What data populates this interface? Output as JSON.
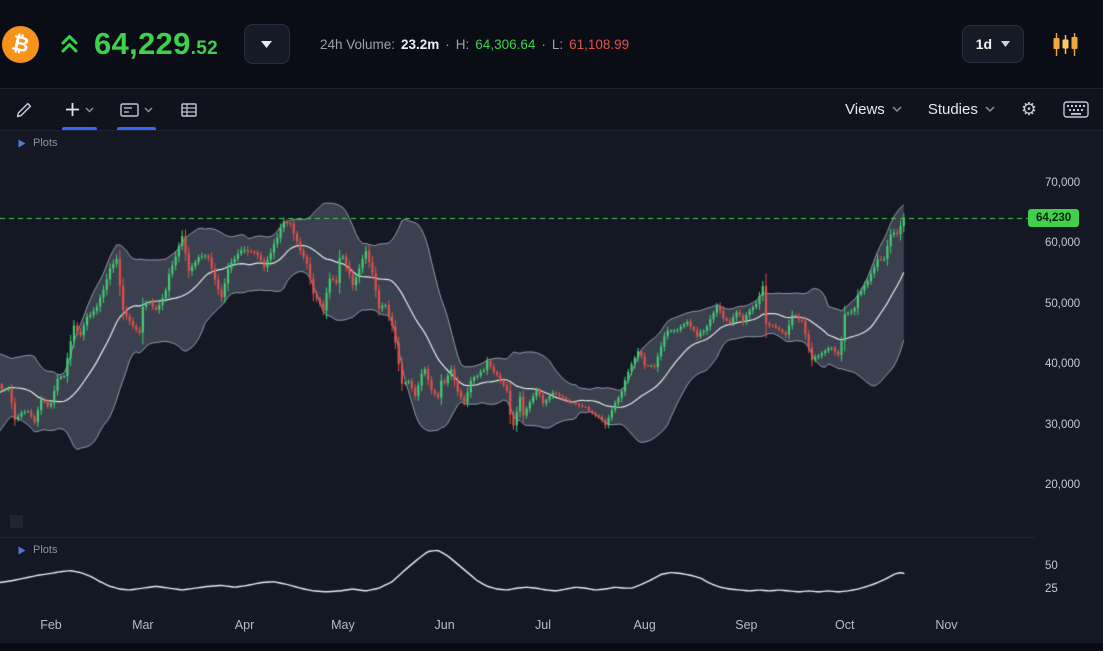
{
  "colors": {
    "green": "#3fd14b",
    "red": "#e2524c",
    "candle_up": "#41cd72",
    "candle_down": "#e0514b",
    "tag_text": "#0a2206",
    "btc_orange": "#f7931a",
    "icon_orange": "#f2a93b",
    "band_fill": "rgba(148,158,178,0.30)"
  },
  "header": {
    "logo_glyph": "₿",
    "price_int": "64,229",
    "price_dec": ".52",
    "volume_label": "24h Volume:",
    "volume_value": "23.2m",
    "sep": "·",
    "high_label": "H:",
    "high_value": "64,306.64",
    "low_label": "L:",
    "low_value": "61,108.99",
    "timeframe": "1d"
  },
  "toolbar": {
    "views_label": "Views",
    "studies_label": "Studies"
  },
  "chart": {
    "plots_label": "Plots",
    "price_tag": "64,230",
    "y_ticks": [
      "70,000",
      "60,000",
      "50,000",
      "40,000",
      "30,000",
      "20,000"
    ],
    "sub_ticks": [
      "50",
      "25"
    ],
    "x_ticks": [
      "Feb",
      "Mar",
      "Apr",
      "May",
      "Jun",
      "Jul",
      "Aug",
      "Sep",
      "Oct",
      "Nov"
    ]
  },
  "chart_data": {
    "type": "candlestick",
    "timeframe": "1d",
    "unit": "USD",
    "current_price": 64229.52,
    "session_high": 64306.64,
    "session_low": 61108.99,
    "price_line": 64230,
    "y_axis": {
      "ticks": [
        70000,
        60000,
        50000,
        40000,
        30000,
        20000
      ]
    },
    "x_axis": {
      "labels": [
        "Feb",
        "Mar",
        "Apr",
        "May",
        "Jun",
        "Jul",
        "Aug",
        "Sep",
        "Oct",
        "Nov"
      ],
      "month_start_days": [
        0,
        28,
        59,
        89,
        120,
        150,
        181,
        212,
        242,
        273
      ]
    },
    "band_overlay": {
      "period": 20,
      "k": 2
    },
    "daily_close_anchors": [
      [
        -36,
        29400
      ],
      [
        -30,
        32200
      ],
      [
        -26,
        36800
      ],
      [
        -24,
        40800
      ],
      [
        -22,
        38200
      ],
      [
        -20,
        34000
      ],
      [
        -18,
        39300
      ],
      [
        -16,
        36800
      ],
      [
        -15,
        35800
      ],
      [
        -13,
        36000
      ],
      [
        -11,
        30800
      ],
      [
        -9,
        32100
      ],
      [
        -7,
        32300
      ],
      [
        -5,
        30400
      ],
      [
        -3,
        34300
      ],
      [
        -1,
        33100
      ],
      [
        0,
        33500
      ],
      [
        2,
        37600
      ],
      [
        4,
        38100
      ],
      [
        7,
        46400
      ],
      [
        9,
        44800
      ],
      [
        11,
        47900
      ],
      [
        13,
        48600
      ],
      [
        16,
        52200
      ],
      [
        18,
        55900
      ],
      [
        20,
        57500
      ],
      [
        22,
        48900
      ],
      [
        24,
        47100
      ],
      [
        25,
        46300
      ],
      [
        27,
        45200
      ],
      [
        28,
        49600
      ],
      [
        30,
        50300
      ],
      [
        32,
        48800
      ],
      [
        35,
        52200
      ],
      [
        36,
        54900
      ],
      [
        40,
        61200
      ],
      [
        42,
        55600
      ],
      [
        46,
        58100
      ],
      [
        48,
        57500
      ],
      [
        51,
        52300
      ],
      [
        52,
        51300
      ],
      [
        54,
        55800
      ],
      [
        56,
        57600
      ],
      [
        58,
        58900
      ],
      [
        59,
        59000
      ],
      [
        63,
        58200
      ],
      [
        65,
        56000
      ],
      [
        68,
        59800
      ],
      [
        71,
        63500
      ],
      [
        73,
        63200
      ],
      [
        75,
        60100
      ],
      [
        78,
        56500
      ],
      [
        80,
        51700
      ],
      [
        83,
        49100
      ],
      [
        85,
        54000
      ],
      [
        87,
        53600
      ],
      [
        88,
        57700
      ],
      [
        89,
        57800
      ],
      [
        92,
        53200
      ],
      [
        95,
        57400
      ],
      [
        96,
        58900
      ],
      [
        98,
        55000
      ],
      [
        100,
        49400
      ],
      [
        102,
        49700
      ],
      [
        104,
        46400
      ],
      [
        105,
        43500
      ],
      [
        107,
        36700
      ],
      [
        109,
        37300
      ],
      [
        111,
        34700
      ],
      [
        113,
        38300
      ],
      [
        114,
        39300
      ],
      [
        116,
        35700
      ],
      [
        118,
        34600
      ],
      [
        119,
        37300
      ],
      [
        120,
        36700
      ],
      [
        122,
        39200
      ],
      [
        124,
        35500
      ],
      [
        126,
        33600
      ],
      [
        128,
        37400
      ],
      [
        132,
        39000
      ],
      [
        133,
        40500
      ],
      [
        136,
        38100
      ],
      [
        139,
        35600
      ],
      [
        140,
        31700
      ],
      [
        141,
        29800
      ],
      [
        143,
        34700
      ],
      [
        144,
        31600
      ],
      [
        147,
        34700
      ],
      [
        148,
        35900
      ],
      [
        149,
        35000
      ],
      [
        150,
        33500
      ],
      [
        153,
        35300
      ],
      [
        158,
        33800
      ],
      [
        163,
        32800
      ],
      [
        165,
        31900
      ],
      [
        168,
        30800
      ],
      [
        169,
        29800
      ],
      [
        172,
        33600
      ],
      [
        174,
        35400
      ],
      [
        175,
        37200
      ],
      [
        177,
        40000
      ],
      [
        179,
        42200
      ],
      [
        180,
        41500
      ],
      [
        181,
        39900
      ],
      [
        184,
        39700
      ],
      [
        187,
        44600
      ],
      [
        188,
        45600
      ],
      [
        191,
        45600
      ],
      [
        194,
        47000
      ],
      [
        197,
        44700
      ],
      [
        200,
        46300
      ],
      [
        203,
        49500
      ],
      [
        205,
        47700
      ],
      [
        207,
        46800
      ],
      [
        209,
        48800
      ],
      [
        211,
        47100
      ],
      [
        213,
        49000
      ],
      [
        215,
        50000
      ],
      [
        217,
        52700
      ],
      [
        218,
        46800
      ],
      [
        221,
        46100
      ],
      [
        224,
        44900
      ],
      [
        226,
        48100
      ],
      [
        229,
        47100
      ],
      [
        232,
        40700
      ],
      [
        236,
        42200
      ],
      [
        238,
        42700
      ],
      [
        240,
        41500
      ],
      [
        241,
        43800
      ],
      [
        242,
        48200
      ],
      [
        245,
        49200
      ],
      [
        246,
        51500
      ],
      [
        249,
        53900
      ],
      [
        252,
        57500
      ],
      [
        254,
        57400
      ],
      [
        256,
        61700
      ],
      [
        258,
        61500
      ],
      [
        260,
        64230
      ]
    ],
    "indicator_panel": {
      "type": "line",
      "y_ticks": [
        50,
        25
      ],
      "anchors": [
        [
          -16,
          33
        ],
        [
          -12,
          35
        ],
        [
          -8,
          38
        ],
        [
          -4,
          41
        ],
        [
          0,
          43
        ],
        [
          3,
          45
        ],
        [
          6,
          46
        ],
        [
          9,
          44
        ],
        [
          12,
          40
        ],
        [
          15,
          34
        ],
        [
          18,
          29
        ],
        [
          21,
          26
        ],
        [
          24,
          25
        ],
        [
          28,
          27
        ],
        [
          32,
          29
        ],
        [
          36,
          27
        ],
        [
          40,
          25
        ],
        [
          44,
          27
        ],
        [
          48,
          29
        ],
        [
          52,
          30
        ],
        [
          56,
          28
        ],
        [
          60,
          30
        ],
        [
          64,
          33
        ],
        [
          68,
          34
        ],
        [
          72,
          31
        ],
        [
          76,
          27
        ],
        [
          80,
          24
        ],
        [
          84,
          23
        ],
        [
          88,
          24
        ],
        [
          92,
          26
        ],
        [
          96,
          24
        ],
        [
          100,
          27
        ],
        [
          104,
          34
        ],
        [
          108,
          47
        ],
        [
          112,
          59
        ],
        [
          115,
          67
        ],
        [
          118,
          68
        ],
        [
          121,
          62
        ],
        [
          124,
          53
        ],
        [
          127,
          44
        ],
        [
          130,
          35
        ],
        [
          133,
          29
        ],
        [
          136,
          26
        ],
        [
          139,
          25
        ],
        [
          142,
          27
        ],
        [
          145,
          28
        ],
        [
          148,
          27
        ],
        [
          151,
          25
        ],
        [
          154,
          24
        ],
        [
          157,
          26
        ],
        [
          160,
          28
        ],
        [
          163,
          27
        ],
        [
          166,
          25
        ],
        [
          169,
          26
        ],
        [
          172,
          28
        ],
        [
          175,
          27
        ],
        [
          177,
          27
        ],
        [
          180,
          31
        ],
        [
          183,
          36
        ],
        [
          186,
          42
        ],
        [
          189,
          44
        ],
        [
          192,
          43
        ],
        [
          195,
          41
        ],
        [
          198,
          38
        ],
        [
          201,
          32
        ],
        [
          204,
          28
        ],
        [
          207,
          26
        ],
        [
          210,
          25
        ],
        [
          213,
          24
        ],
        [
          216,
          25
        ],
        [
          219,
          24
        ],
        [
          222,
          25
        ],
        [
          225,
          24
        ],
        [
          228,
          23
        ],
        [
          231,
          24
        ],
        [
          234,
          23
        ],
        [
          237,
          24
        ],
        [
          240,
          23
        ],
        [
          243,
          24
        ],
        [
          246,
          26
        ],
        [
          249,
          29
        ],
        [
          252,
          33
        ],
        [
          255,
          38
        ],
        [
          257,
          42
        ],
        [
          259,
          44
        ],
        [
          260,
          43
        ]
      ]
    }
  }
}
